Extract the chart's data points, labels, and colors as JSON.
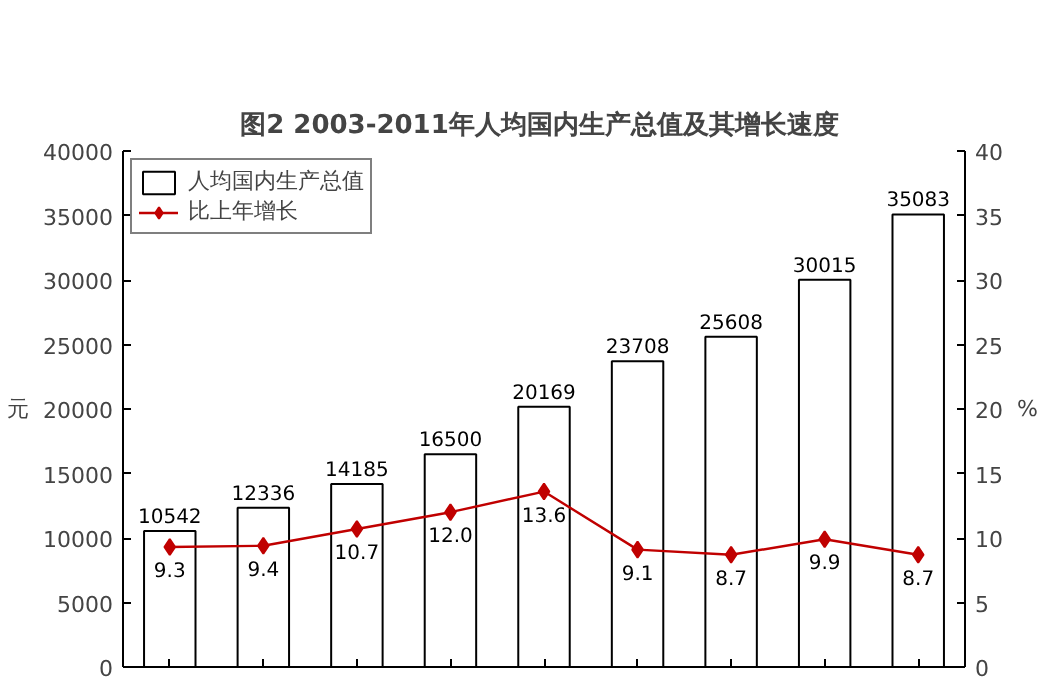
{
  "chart_data": {
    "type": "bar",
    "title": "图2  2003-2011年人均国内生产总值及其增长速度",
    "ylabel": "元",
    "y2label": "%",
    "categories": [
      null,
      null,
      null,
      null,
      null,
      null,
      null,
      null,
      null
    ],
    "series": [
      {
        "name": "人均国内生产总值",
        "color": "#ffffff",
        "values": [
          10542,
          12336,
          14185,
          16500,
          20169,
          23708,
          25608,
          30015,
          35083
        ],
        "value_labels": [
          "10542",
          "12336",
          "14185",
          "16500",
          "20169",
          "23708",
          "25608",
          "30015",
          "35083"
        ]
      },
      {
        "name": "比上年增长",
        "type": "line",
        "axis": "y2",
        "color": "#c00000",
        "marker": "diamond",
        "values": [
          9.3,
          9.4,
          10.7,
          12.0,
          13.6,
          9.1,
          8.7,
          9.9,
          8.7
        ],
        "value_labels": [
          "9.3",
          "9.4",
          "10.7",
          "12.0",
          "13.6",
          "9.1",
          "8.7",
          "9.9",
          "8.7"
        ]
      }
    ],
    "ylim": [
      0,
      40000
    ],
    "yticks": [
      0,
      5000,
      10000,
      15000,
      20000,
      25000,
      30000,
      35000,
      40000
    ],
    "y2lim": [
      0,
      40
    ],
    "y2ticks": [
      0,
      5,
      10,
      15,
      20,
      25,
      30,
      35,
      40
    ],
    "tick_labels": "y",
    "grid": false,
    "legend": "top left"
  }
}
